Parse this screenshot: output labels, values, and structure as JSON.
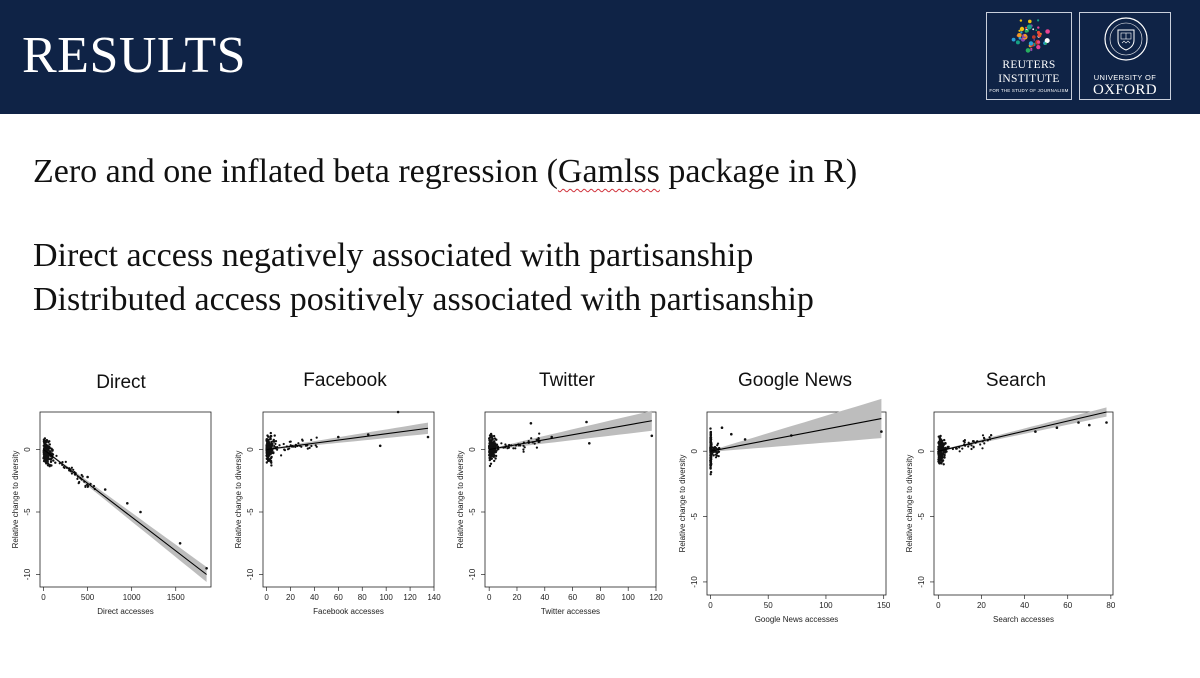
{
  "header": {
    "title": "RESULTS",
    "logos": {
      "reuters": {
        "line1": "REUTERS",
        "line2": "INSTITUTE",
        "line3": "FOR THE STUDY OF JOURNALISM"
      },
      "oxford": {
        "line1": "UNIVERSITY OF",
        "line2": "OXFORD"
      }
    },
    "colors": {
      "header_bg": "#0f2346",
      "text": "#ffffff"
    }
  },
  "body": {
    "line1_pre": "Zero and one inflated beta regression (",
    "line1_mid": "Gamlss",
    "line1_post": " package in R)",
    "line2": "Direct access negatively associated with partisanship",
    "line3": "Distributed access positively associated with partisanship"
  },
  "chart_data": [
    {
      "type": "scatter",
      "title": "Direct",
      "xlabel": "Direct accesses",
      "ylabel": "Relative change to diversity",
      "xlim": [
        -40,
        1900
      ],
      "ylim": [
        -11,
        3
      ],
      "x_ticks": [
        0,
        500,
        1000,
        1500
      ],
      "y_ticks": [
        0,
        -5,
        -10
      ],
      "fit": {
        "x0": 0,
        "y0": 0,
        "x1": 1850,
        "y1": -10,
        "ci_start": 0.05,
        "ci_end": 0.6
      },
      "points_notable": [
        {
          "x": 500,
          "y": -2.2
        },
        {
          "x": 700,
          "y": -3.2
        },
        {
          "x": 950,
          "y": -4.3
        },
        {
          "x": 1100,
          "y": -5.0
        },
        {
          "x": 1550,
          "y": -7.5
        },
        {
          "x": 1850,
          "y": -9.5
        }
      ]
    },
    {
      "type": "scatter",
      "title": "Facebook",
      "xlabel": "Facebook accesses",
      "ylabel": "Relative change to diversity",
      "xlim": [
        -3,
        140
      ],
      "ylim": [
        -11,
        3
      ],
      "x_ticks": [
        0,
        20,
        40,
        60,
        80,
        100,
        120,
        140
      ],
      "y_ticks": [
        0,
        -5,
        -10
      ],
      "fit": {
        "x0": 0,
        "y0": 0,
        "x1": 135,
        "y1": 1.7,
        "ci_start": 0.05,
        "ci_end": 0.45
      },
      "points_notable": [
        {
          "x": 60,
          "y": 1.0
        },
        {
          "x": 85,
          "y": 1.2
        },
        {
          "x": 95,
          "y": 0.3
        },
        {
          "x": 110,
          "y": 3.0
        },
        {
          "x": 135,
          "y": 1.0
        }
      ]
    },
    {
      "type": "scatter",
      "title": "Twitter",
      "xlabel": "Twitter accesses",
      "ylabel": "Relative change to diversity",
      "xlim": [
        -3,
        120
      ],
      "ylim": [
        -11,
        3
      ],
      "x_ticks": [
        0,
        20,
        40,
        60,
        80,
        100,
        120
      ],
      "y_ticks": [
        0,
        -5,
        -10
      ],
      "fit": {
        "x0": 0,
        "y0": 0,
        "x1": 117,
        "y1": 2.3,
        "ci_start": 0.05,
        "ci_end": 0.8
      },
      "points_notable": [
        {
          "x": 30,
          "y": 2.1
        },
        {
          "x": 45,
          "y": 1.0
        },
        {
          "x": 70,
          "y": 2.2
        },
        {
          "x": 72,
          "y": 0.5
        },
        {
          "x": 117,
          "y": 1.1
        }
      ]
    },
    {
      "type": "scatter",
      "title": "Google News",
      "xlabel": "Google News accesses",
      "ylabel": "Relative change to diversity",
      "xlim": [
        -3,
        152
      ],
      "ylim": [
        -11,
        3
      ],
      "x_ticks": [
        0,
        50,
        100,
        150
      ],
      "y_ticks": [
        0,
        -5,
        -10
      ],
      "fit": {
        "x0": 0,
        "y0": 0,
        "x1": 148,
        "y1": 2.5,
        "ci_start": 0.05,
        "ci_end": 1.5
      },
      "points_notable": [
        {
          "x": 10,
          "y": 1.8
        },
        {
          "x": 18,
          "y": 1.3
        },
        {
          "x": 30,
          "y": 0.9
        },
        {
          "x": 70,
          "y": 1.2
        },
        {
          "x": 148,
          "y": 1.5
        }
      ]
    },
    {
      "type": "scatter",
      "title": "Search",
      "xlabel": "Search accesses",
      "ylabel": "Relative change to diversity",
      "xlim": [
        -2,
        81
      ],
      "ylim": [
        -11,
        3
      ],
      "x_ticks": [
        0,
        20,
        40,
        60,
        80
      ],
      "y_ticks": [
        0,
        -5,
        -10
      ],
      "fit": {
        "x0": 0,
        "y0": 0,
        "x1": 78,
        "y1": 3.0,
        "ci_start": 0.05,
        "ci_end": 0.35
      },
      "points_notable": [
        {
          "x": 45,
          "y": 1.5
        },
        {
          "x": 55,
          "y": 1.8
        },
        {
          "x": 65,
          "y": 2.2
        },
        {
          "x": 70,
          "y": 2.0
        },
        {
          "x": 78,
          "y": 2.2
        }
      ]
    }
  ]
}
